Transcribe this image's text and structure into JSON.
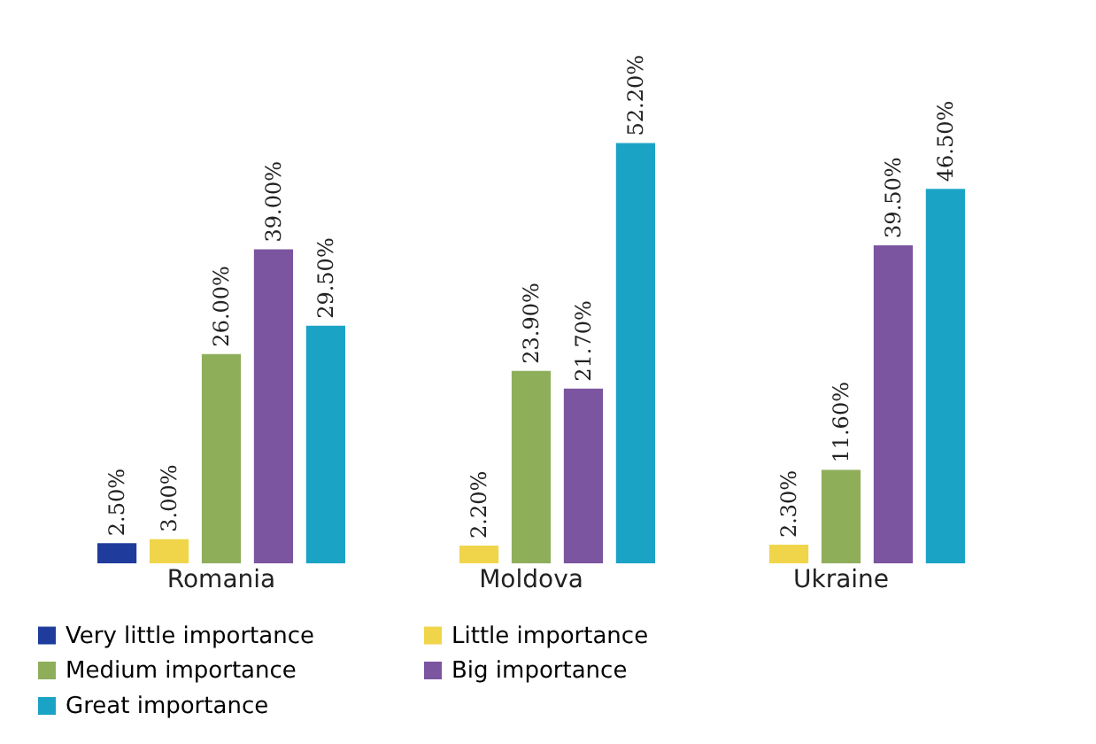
{
  "chart_data": {
    "type": "bar",
    "categories": [
      "Romania",
      "Moldova",
      "Ukraine"
    ],
    "series": [
      {
        "name": "Very little importance",
        "color": "#1f3c9c",
        "values": [
          2.5,
          null,
          null
        ],
        "value_labels": [
          "2.50%",
          null,
          null
        ]
      },
      {
        "name": "Little importance",
        "color": "#f0d54a",
        "values": [
          3.0,
          2.2,
          2.3
        ],
        "value_labels": [
          "3.00%",
          "2.20%",
          "2.30%"
        ]
      },
      {
        "name": "Medium importance",
        "color": "#8fae5a",
        "values": [
          26.0,
          23.9,
          11.6
        ],
        "value_labels": [
          "26.00%",
          "23.90%",
          "11.60%"
        ]
      },
      {
        "name": "Big importance",
        "color": "#7b55a0",
        "values": [
          39.0,
          21.7,
          39.5
        ],
        "value_labels": [
          "39.00%",
          "21.70%",
          "39.50%"
        ]
      },
      {
        "name": "Great importance",
        "color": "#1ba3c6",
        "values": [
          29.5,
          52.2,
          46.5
        ],
        "value_labels": [
          "29.50%",
          "52.20%",
          "46.50%"
        ]
      }
    ],
    "legend": "bottom",
    "grid": false
  }
}
